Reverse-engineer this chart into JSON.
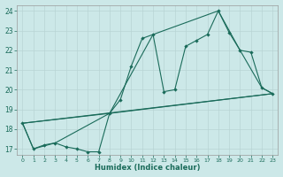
{
  "xlabel": "Humidex (Indice chaleur)",
  "xlim": [
    -0.5,
    23.5
  ],
  "ylim": [
    16.7,
    24.3
  ],
  "yticks": [
    17,
    18,
    19,
    20,
    21,
    22,
    23,
    24
  ],
  "xticks": [
    0,
    1,
    2,
    3,
    4,
    5,
    6,
    7,
    8,
    9,
    10,
    11,
    12,
    13,
    14,
    15,
    16,
    17,
    18,
    19,
    20,
    21,
    22,
    23
  ],
  "bg_color": "#cce8e8",
  "line_color": "#1a6b5a",
  "grid_color": "#b8d4d4",
  "line1_x": [
    0,
    1,
    2,
    3,
    4,
    5,
    6,
    7,
    8,
    9,
    10,
    11,
    12,
    13,
    14,
    15,
    16,
    17,
    18,
    19,
    20,
    21,
    22,
    23
  ],
  "line1_y": [
    18.3,
    17.0,
    17.2,
    17.3,
    17.1,
    17.0,
    16.85,
    16.85,
    18.8,
    19.5,
    21.2,
    22.6,
    22.8,
    19.9,
    20.0,
    22.2,
    22.5,
    22.8,
    24.0,
    22.9,
    22.0,
    21.9,
    20.1,
    19.8
  ],
  "line2_x": [
    0,
    23
  ],
  "line2_y": [
    18.3,
    19.8
  ],
  "line3_x": [
    0,
    8,
    12,
    18,
    20,
    22,
    23
  ],
  "line3_y": [
    18.3,
    18.8,
    22.8,
    24.0,
    22.0,
    20.1,
    19.8
  ],
  "line4_x": [
    0,
    1,
    3,
    8,
    23
  ],
  "line4_y": [
    18.3,
    17.0,
    17.3,
    18.8,
    19.8
  ]
}
